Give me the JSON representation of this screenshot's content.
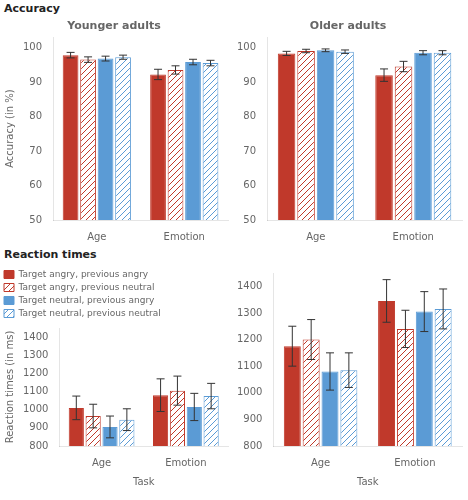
{
  "chart_data": [
    {
      "type": "bar",
      "title": "Younger adults",
      "annotations": [
        "Accuracy"
      ],
      "y_label": "Accuracy (in %)",
      "categories": [
        "Age",
        "Emotion"
      ],
      "series": [
        {
          "color": "#c0392b",
          "values": [
            97.8,
            92.2
          ],
          "errors": [
            0.8,
            1.5
          ]
        },
        {
          "color": "#c0392b",
          "values": [
            96.5,
            93.5
          ],
          "errors": [
            0.8,
            1.2
          ]
        },
        {
          "color": "#5b9bd5",
          "values": [
            96.8,
            95.8
          ],
          "errors": [
            0.7,
            0.8
          ]
        },
        {
          "color": "#5b9bd5",
          "values": [
            97.2,
            95.5
          ],
          "errors": [
            0.6,
            0.8
          ]
        }
      ],
      "ylim": [
        50,
        103
      ],
      "yticks": [
        50,
        60,
        70,
        80,
        90,
        100
      ],
      "grid": false
    },
    {
      "type": "bar",
      "title": "Older adults",
      "categories": [
        "Age",
        "Emotion"
      ],
      "series": [
        {
          "color": "#c0392b",
          "values": [
            98.3,
            92.0
          ],
          "errors": [
            0.6,
            1.8
          ]
        },
        {
          "color": "#c0392b",
          "values": [
            99.0,
            94.5
          ],
          "errors": [
            0.5,
            1.5
          ]
        },
        {
          "color": "#5b9bd5",
          "values": [
            99.2,
            98.5
          ],
          "errors": [
            0.4,
            0.6
          ]
        },
        {
          "color": "#5b9bd5",
          "values": [
            98.8,
            98.5
          ],
          "errors": [
            0.5,
            0.6
          ]
        }
      ],
      "ylim": [
        50,
        103
      ],
      "yticks": [
        50,
        60,
        70,
        80,
        90,
        100
      ],
      "grid": false
    },
    {
      "type": "bar",
      "annotations": [
        "Reaction times"
      ],
      "x_label": "Task",
      "y_label": "Reaction times (in ms)",
      "categories": [
        "Age",
        "Emotion"
      ],
      "series": [
        {
          "name": "Target angry, previous angry",
          "color": "#c0392b",
          "values": [
            1010,
            1080
          ],
          "errors": [
            65,
            90
          ]
        },
        {
          "name": "Target angry, previous neutral",
          "color": "#c0392b",
          "values": [
            965,
            1105
          ],
          "errors": [
            65,
            80
          ]
        },
        {
          "name": "Target neutral, previous angry",
          "color": "#5b9bd5",
          "values": [
            905,
            1015
          ],
          "errors": [
            60,
            75
          ]
        },
        {
          "name": "Target neutral, previous neutral",
          "color": "#5b9bd5",
          "values": [
            945,
            1075
          ],
          "errors": [
            60,
            70
          ]
        }
      ],
      "ylim": [
        800,
        1450
      ],
      "yticks": [
        800,
        900,
        1000,
        1100,
        1200,
        1300,
        1400
      ],
      "grid": false,
      "legend": "upper left"
    },
    {
      "type": "bar",
      "x_label": "Task",
      "categories": [
        "Age",
        "Emotion"
      ],
      "series": [
        {
          "color": "#c0392b",
          "values": [
            1175,
            1345
          ],
          "errors": [
            75,
            80
          ]
        },
        {
          "color": "#c0392b",
          "values": [
            1200,
            1240
          ],
          "errors": [
            75,
            70
          ]
        },
        {
          "color": "#5b9bd5",
          "values": [
            1080,
            1305
          ],
          "errors": [
            70,
            75
          ]
        },
        {
          "color": "#5b9bd5",
          "values": [
            1085,
            1315
          ],
          "errors": [
            65,
            75
          ]
        }
      ],
      "ylim": [
        800,
        1450
      ],
      "yticks": [
        800,
        900,
        1000,
        1100,
        1200,
        1300,
        1400
      ],
      "grid": false
    }
  ]
}
